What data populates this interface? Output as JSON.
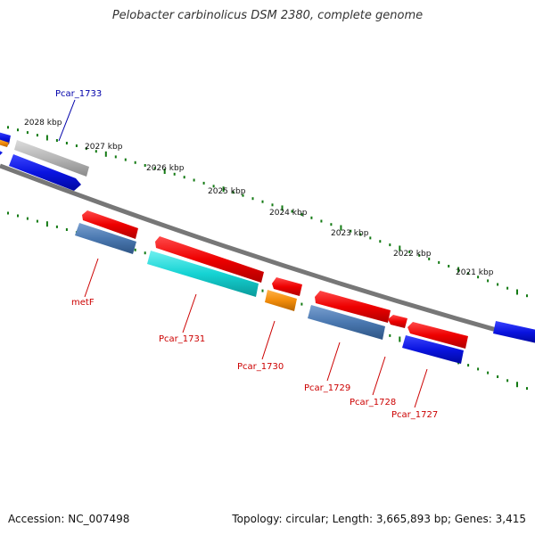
{
  "title": "Pelobacter carbinolicus DSM 2380, complete genome",
  "footer": {
    "accession": "Accession: NC_007498",
    "topology": "Topology: circular; Length: 3,665,893 bp; Genes: 3,415"
  },
  "colors": {
    "backbone": "#777777",
    "tick": "#137a13",
    "reverse_label": "#cc0000",
    "forward_label": "#0000aa",
    "red": "#ee0000",
    "blue": "#0a14e0",
    "steelblue": "#4a78b0",
    "cyan": "#15d3d3",
    "orange": "#f28c0a",
    "grey": "#b5b5b5"
  },
  "kbp_labels": [
    "2028 kbp",
    "2027 kbp",
    "2026 kbp",
    "2025 kbp",
    "2024 kbp",
    "2023 kbp",
    "2022 kbp",
    "2021 kbp"
  ],
  "gene_labels": [
    {
      "name": "Pcar_1733",
      "strand": "forward",
      "icon": "gene-pointer-line"
    },
    {
      "name": "metF",
      "strand": "reverse",
      "icon": "gene-pointer-line"
    },
    {
      "name": "Pcar_1731",
      "strand": "reverse",
      "icon": "gene-pointer-line"
    },
    {
      "name": "Pcar_1730",
      "strand": "reverse",
      "icon": "gene-pointer-line"
    },
    {
      "name": "Pcar_1729",
      "strand": "reverse",
      "icon": "gene-pointer-line"
    },
    {
      "name": "Pcar_1728",
      "strand": "reverse",
      "icon": "gene-pointer-line"
    },
    {
      "name": "Pcar_1727",
      "strand": "reverse",
      "icon": "gene-pointer-line"
    }
  ]
}
